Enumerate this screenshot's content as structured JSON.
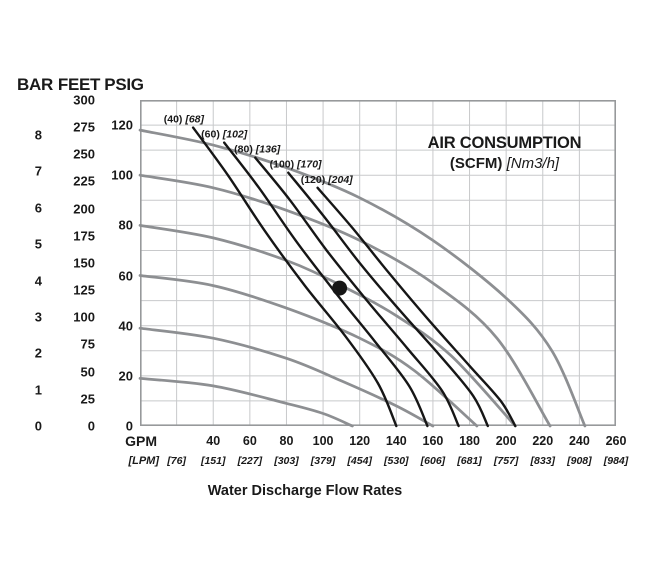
{
  "chart_data": {
    "type": "line",
    "title": "AIR CONSUMPTION",
    "title_unit_bold": "(SCFM)",
    "title_unit_italic": "[Nm3/h]",
    "xlabel": "Water Discharge Flow Rates",
    "x_axis": {
      "unit_primary": "GPM",
      "unit_secondary": "[LPM]",
      "gpm_ticks": [
        40,
        60,
        80,
        100,
        120,
        140,
        160,
        180,
        200,
        220,
        240,
        260
      ],
      "lpm_ticks": [
        "[76]",
        "[151]",
        "[227]",
        "[303]",
        "[379]",
        "[454]",
        "[530]",
        "[606]",
        "[681]",
        "[757]",
        "[833]",
        "[908]",
        "[984]"
      ],
      "lpm_tick_gpm_positions": [
        20,
        40,
        60,
        80,
        100,
        120,
        140,
        160,
        180,
        200,
        220,
        240,
        260
      ]
    },
    "left_axis": {
      "headers": [
        "BAR",
        "FEET",
        "PSIG"
      ],
      "bar_ticks": [
        8,
        7,
        6,
        5,
        4,
        3,
        2,
        1,
        0
      ],
      "feet_ticks": [
        300,
        275,
        250,
        225,
        200,
        175,
        150,
        125,
        100,
        75,
        50,
        25,
        0
      ],
      "psig_ticks": [
        120,
        100,
        80,
        60,
        40,
        20,
        0
      ]
    },
    "x_range_gpm": [
      0,
      260
    ],
    "y_range_psig": [
      0,
      130
    ],
    "grid": {
      "x_step_gpm": 20,
      "y_step_psig": 10
    },
    "performance_curves_air_inlet_psig": [
      {
        "air_inlet_psig": 120,
        "points": [
          [
            0,
            118
          ],
          [
            40,
            112
          ],
          [
            80,
            103
          ],
          [
            120,
            91
          ],
          [
            160,
            74
          ],
          [
            200,
            51
          ],
          [
            225,
            30
          ],
          [
            243,
            0
          ]
        ]
      },
      {
        "air_inlet_psig": 100,
        "points": [
          [
            0,
            100
          ],
          [
            40,
            95
          ],
          [
            80,
            86
          ],
          [
            120,
            74
          ],
          [
            160,
            57
          ],
          [
            195,
            35
          ],
          [
            224,
            0
          ]
        ]
      },
      {
        "air_inlet_psig": 80,
        "points": [
          [
            0,
            80
          ],
          [
            40,
            75
          ],
          [
            80,
            66
          ],
          [
            110,
            56
          ],
          [
            140,
            44
          ],
          [
            170,
            28
          ],
          [
            205,
            0
          ]
        ]
      },
      {
        "air_inlet_psig": 60,
        "points": [
          [
            0,
            60
          ],
          [
            40,
            56
          ],
          [
            80,
            47
          ],
          [
            120,
            35
          ],
          [
            150,
            22
          ],
          [
            184,
            0
          ]
        ]
      },
      {
        "air_inlet_psig": 40,
        "points": [
          [
            0,
            39
          ],
          [
            40,
            35
          ],
          [
            80,
            27
          ],
          [
            110,
            18
          ],
          [
            140,
            8
          ],
          [
            160,
            0
          ]
        ]
      },
      {
        "air_inlet_psig": 20,
        "points": [
          [
            0,
            19
          ],
          [
            40,
            16
          ],
          [
            80,
            9
          ],
          [
            100,
            5
          ],
          [
            116,
            0
          ]
        ]
      }
    ],
    "air_consumption_curves_scfm": [
      {
        "scfm": "(40)",
        "nm3h": "[68]",
        "label_at": [
          24,
          121
        ],
        "points": [
          [
            29,
            119
          ],
          [
            48,
            100
          ],
          [
            68,
            78
          ],
          [
            90,
            56
          ],
          [
            112,
            36
          ],
          [
            130,
            17
          ],
          [
            140,
            0
          ]
        ]
      },
      {
        "scfm": "(60)",
        "nm3h": "[102]",
        "label_at": [
          46,
          115
        ],
        "points": [
          [
            46,
            113
          ],
          [
            65,
            95
          ],
          [
            85,
            74
          ],
          [
            107,
            53
          ],
          [
            128,
            34
          ],
          [
            147,
            16
          ],
          [
            157,
            0
          ]
        ]
      },
      {
        "scfm": "(80)",
        "nm3h": "[136]",
        "label_at": [
          64,
          109
        ],
        "points": [
          [
            63,
            107
          ],
          [
            82,
            90
          ],
          [
            102,
            70
          ],
          [
            124,
            50
          ],
          [
            146,
            31
          ],
          [
            165,
            14
          ],
          [
            174,
            0
          ]
        ]
      },
      {
        "scfm": "(100)",
        "nm3h": "[170]",
        "label_at": [
          85,
          103
        ],
        "points": [
          [
            81,
            101
          ],
          [
            100,
            84
          ],
          [
            120,
            65
          ],
          [
            142,
            46
          ],
          [
            164,
            28
          ],
          [
            182,
            12
          ],
          [
            190,
            0
          ]
        ]
      },
      {
        "scfm": "(120)",
        "nm3h": "[204]",
        "label_at": [
          102,
          97
        ],
        "points": [
          [
            97,
            95
          ],
          [
            116,
            79
          ],
          [
            136,
            61
          ],
          [
            158,
            42
          ],
          [
            180,
            24
          ],
          [
            197,
            10
          ],
          [
            205,
            0
          ]
        ]
      }
    ],
    "operating_point": {
      "gpm": 109,
      "psig": 55
    },
    "colors": {
      "gray_curve": "#8d8f92",
      "black_curve": "#161616",
      "grid": "#c8c9cb",
      "border": "#97999b",
      "text": "#1a1a1a",
      "background": "#ffffff"
    }
  }
}
